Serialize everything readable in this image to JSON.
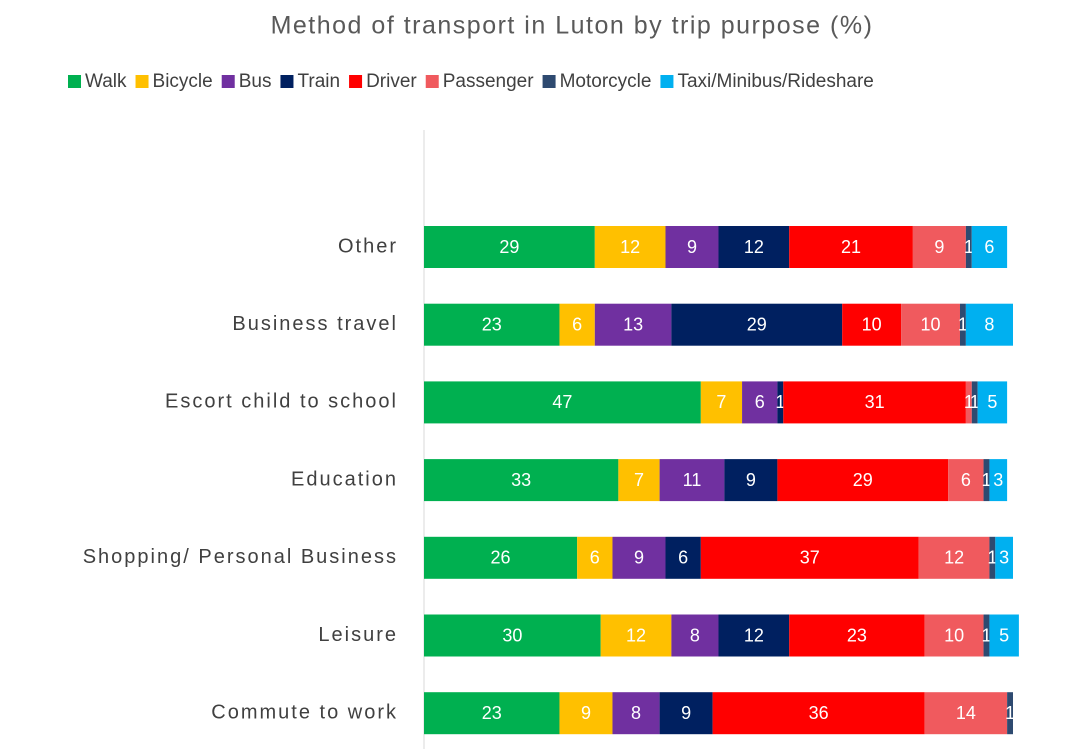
{
  "chart_data": {
    "type": "stacked-bar-horizontal",
    "title": "Method of transport in Luton by trip purpose (%)",
    "categories": [
      "Other",
      "Business travel",
      "Escort child to school",
      "Education",
      "Shopping/ Personal Business",
      "Leisure",
      "Commute to work"
    ],
    "series": [
      {
        "name": "Walk",
        "color": "#00b050",
        "values": [
          29,
          23,
          47,
          33,
          26,
          30,
          23
        ]
      },
      {
        "name": "Bicycle",
        "color": "#ffc000",
        "values": [
          12,
          6,
          7,
          7,
          6,
          12,
          9
        ]
      },
      {
        "name": "Bus",
        "color": "#7030a0",
        "values": [
          9,
          13,
          6,
          11,
          9,
          8,
          8
        ]
      },
      {
        "name": "Train",
        "color": "#002060",
        "values": [
          12,
          29,
          1,
          9,
          6,
          12,
          9
        ]
      },
      {
        "name": "Driver",
        "color": "#ff0000",
        "values": [
          21,
          10,
          31,
          29,
          37,
          23,
          36
        ]
      },
      {
        "name": "Passenger",
        "color": "#f05a5e",
        "values": [
          9,
          10,
          1,
          6,
          12,
          10,
          14
        ]
      },
      {
        "name": "Motorcycle",
        "color": "#2e4a70",
        "values": [
          1,
          1,
          1,
          1,
          1,
          1,
          1
        ]
      },
      {
        "name": "Taxi/Minibus/Rideshare",
        "color": "#00b0f0",
        "values": [
          6,
          8,
          5,
          3,
          3,
          5,
          null
        ]
      }
    ],
    "legend": "top"
  }
}
